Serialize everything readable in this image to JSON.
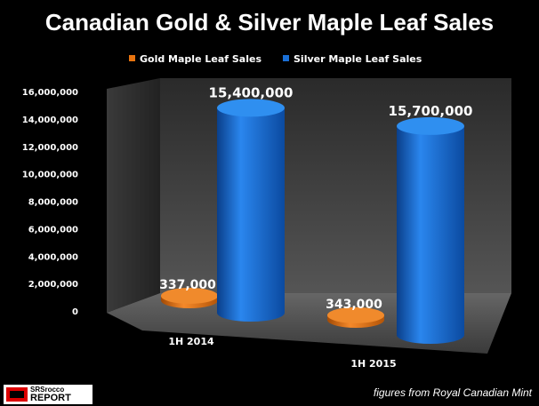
{
  "chart_data": {
    "type": "bar",
    "title": "Canadian Gold & Silver Maple Leaf Sales",
    "categories": [
      "1H 2014",
      "1H 2015"
    ],
    "series": [
      {
        "name": "Gold Maple Leaf Sales",
        "values": [
          337000,
          343000
        ],
        "labels": [
          "337,000",
          "343,000"
        ],
        "color": "#e8740f"
      },
      {
        "name": "Silver Maple Leaf Sales",
        "values": [
          15400000,
          15700000
        ],
        "labels": [
          "15,400,000",
          "15,700,000"
        ],
        "color": "#1a6fd6"
      }
    ],
    "ylim": [
      0,
      16000000
    ],
    "yticks": [
      "0",
      "2,000,000",
      "4,000,000",
      "6,000,000",
      "8,000,000",
      "10,000,000",
      "12,000,000",
      "14,000,000",
      "16,000,000"
    ],
    "legend": "top",
    "grid": false,
    "style": "3d-cylinder"
  },
  "source": "figures from Royal Canadian Mint",
  "logo": {
    "line1": "SRSrocco",
    "line2": "REPORT",
    "badge": "SRSR"
  }
}
